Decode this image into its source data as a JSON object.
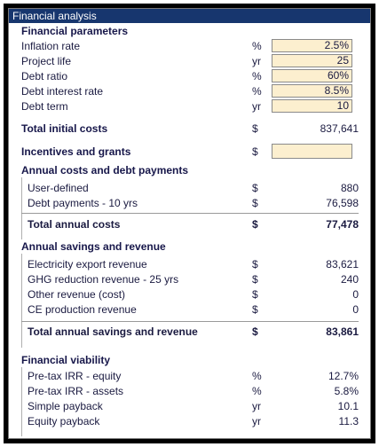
{
  "window": {
    "title": "Financial analysis"
  },
  "financial_parameters": {
    "heading": "Financial parameters",
    "rows": [
      {
        "label": "Inflation rate",
        "unit": "%",
        "value": "2.5%"
      },
      {
        "label": "Project life",
        "unit": "yr",
        "value": "25"
      },
      {
        "label": "Debt ratio",
        "unit": "%",
        "value": "60%"
      },
      {
        "label": "Debt interest rate",
        "unit": "%",
        "value": "8.5%"
      },
      {
        "label": "Debt term",
        "unit": "yr",
        "value": "10"
      }
    ]
  },
  "total_initial_costs": {
    "label": "Total initial costs",
    "unit": "$",
    "value": "837,641"
  },
  "incentives": {
    "label": "Incentives and grants",
    "unit": "$",
    "value": ""
  },
  "annual_costs": {
    "heading": "Annual costs and debt payments",
    "rows": [
      {
        "label": "User-defined",
        "unit": "$",
        "value": "880"
      },
      {
        "label": "Debt payments - 10 yrs",
        "unit": "$",
        "value": "76,598"
      }
    ],
    "total": {
      "label": "Total annual costs",
      "unit": "$",
      "value": "77,478"
    }
  },
  "annual_savings": {
    "heading": "Annual savings and revenue",
    "rows": [
      {
        "label": "Electricity export revenue",
        "unit": "$",
        "value": "83,621"
      },
      {
        "label": "GHG reduction revenue - 25 yrs",
        "unit": "$",
        "value": "240"
      },
      {
        "label": "Other revenue (cost)",
        "unit": "$",
        "value": "0"
      },
      {
        "label": "CE production revenue",
        "unit": "$",
        "value": "0"
      }
    ],
    "total": {
      "label": "Total annual savings and revenue",
      "unit": "$",
      "value": "83,861"
    }
  },
  "financial_viability": {
    "heading": "Financial viability",
    "rows": [
      {
        "label": "Pre-tax IRR - equity",
        "unit": "%",
        "value": "12.7%"
      },
      {
        "label": "Pre-tax IRR - assets",
        "unit": "%",
        "value": "5.8%"
      },
      {
        "label": "Simple payback",
        "unit": "yr",
        "value": "10.1"
      },
      {
        "label": "Equity payback",
        "unit": "yr",
        "value": "11.3"
      }
    ]
  },
  "colors": {
    "titlebar": "#17366e",
    "input_fill": "#fcefcf",
    "text": "#1a1a40"
  }
}
